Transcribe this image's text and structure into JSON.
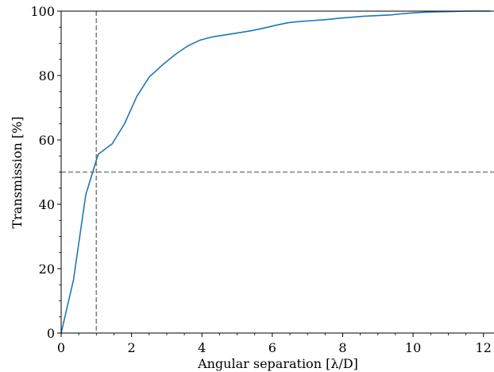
{
  "chart_data": {
    "type": "line",
    "title": "",
    "xlabel": "Angular separation [λ/D]",
    "ylabel": "Transmission [%]",
    "xlim": [
      0,
      12.3
    ],
    "ylim": [
      0,
      100
    ],
    "x_ticks": [
      0,
      2,
      4,
      6,
      8,
      10,
      12
    ],
    "y_ticks": [
      0,
      20,
      40,
      60,
      80,
      100
    ],
    "grid": false,
    "series": [
      {
        "color": "#1f77b4",
        "x": [
          0,
          0.35,
          0.7,
          1.05,
          1.45,
          1.8,
          2.15,
          2.5,
          2.9,
          3.25,
          3.6,
          3.95,
          4.3,
          4.65,
          5.0,
          5.4,
          5.75,
          6.1,
          6.45,
          6.8,
          7.2,
          7.55,
          7.9,
          8.25,
          8.6,
          8.95,
          9.35,
          9.7,
          10.05,
          10.4,
          10.75,
          11.15,
          11.5,
          11.85,
          12.2
        ],
        "y": [
          0,
          16.5,
          43,
          55.5,
          58.8,
          65,
          73.5,
          79.5,
          83.5,
          86.6,
          89.2,
          91.0,
          92.0,
          92.6,
          93.2,
          93.9,
          94.7,
          95.6,
          96.4,
          96.8,
          97.1,
          97.4,
          97.8,
          98.1,
          98.4,
          98.6,
          98.8,
          99.2,
          99.5,
          99.7,
          99.8,
          99.9,
          100,
          100,
          100
        ]
      }
    ],
    "reference_lines": [
      {
        "orientation": "vertical",
        "value": 1.0,
        "style": "dashed",
        "color": "#808080"
      },
      {
        "orientation": "horizontal",
        "value": 50,
        "style": "dashed",
        "color": "#808080"
      }
    ]
  }
}
